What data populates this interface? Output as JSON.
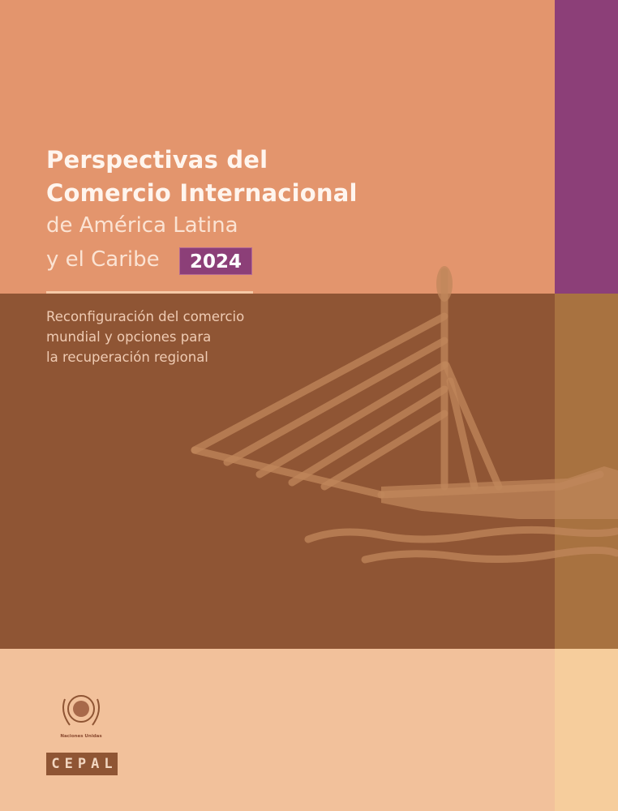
{
  "cover": {
    "title_line1": "Perspectivas del",
    "title_line2": "Comercio Internacional",
    "title_line3": "de América Latina",
    "title_line4": "y el Caribe",
    "year": "2024",
    "subtitle_line1": "Reconfiguración del comercio",
    "subtitle_line2": "mundial y opciones para",
    "subtitle_line3": "la recuperación regional"
  },
  "logos": {
    "un_label": "Naciones Unidas",
    "cepal": "CEPAL"
  },
  "colors": {
    "top_band": "#e3956d",
    "middle_band": "#8f5534",
    "bottom_band": "#f2c19b",
    "accent_purple": "#8c3f78"
  }
}
